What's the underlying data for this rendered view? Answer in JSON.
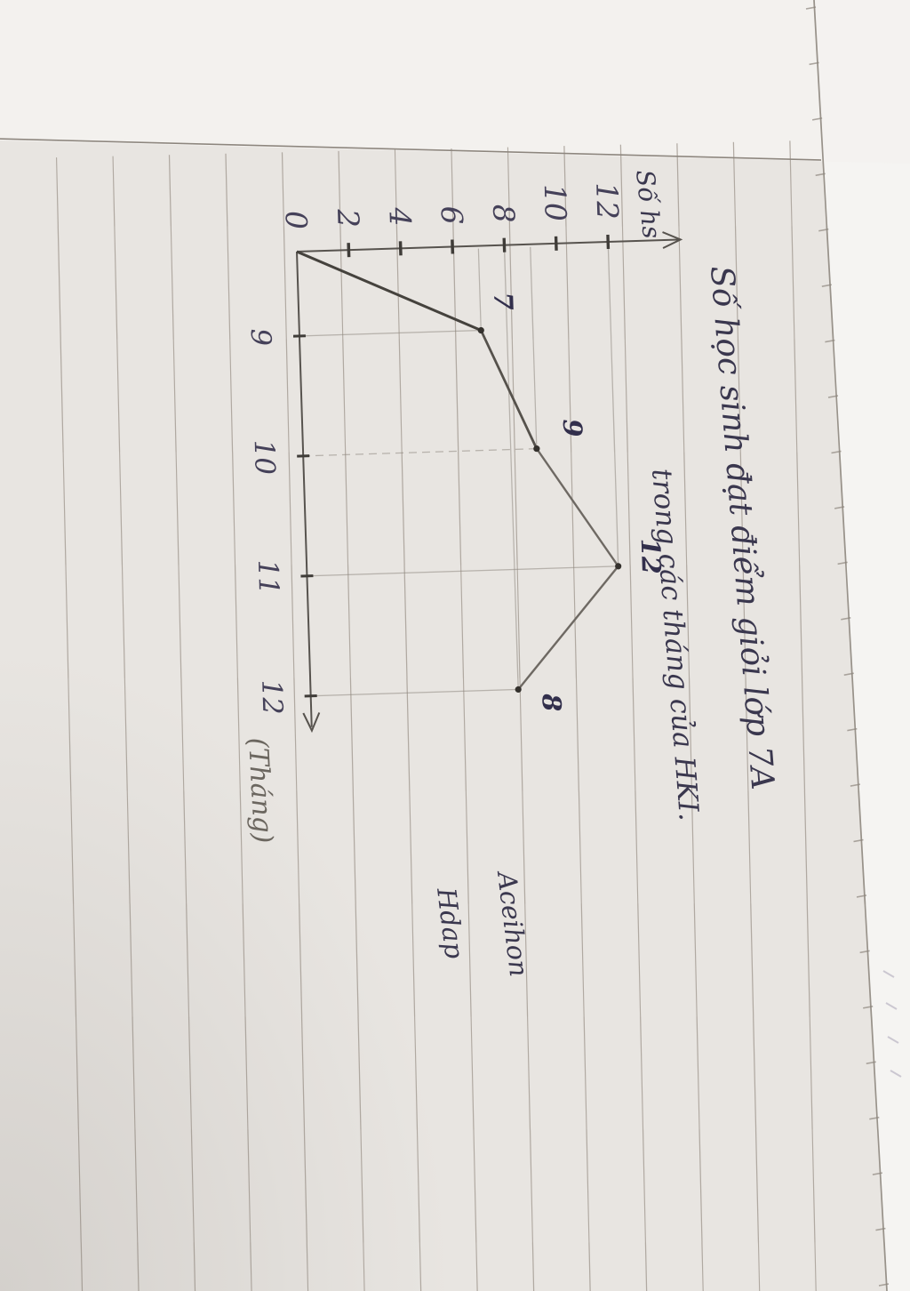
{
  "page": {
    "description": "Photograph of a hand-drawn line chart on lined notebook paper, page rotated 90 degrees in the photo",
    "colors": {
      "paper": "#e8e5e1",
      "paper_margin_strip": "#f4f2ef",
      "paper_behind_edge": "#f5f4f2",
      "rule_line": "#a79f97",
      "margin_line": "#8d867e",
      "page_edge_line": "#98928a",
      "ink": "#3a374e",
      "pencil": "#6b665f",
      "chart_stroke": "#57534e",
      "data_line": "#6e6963",
      "data_line_dark": "#45423d",
      "helper_line": "#908a81",
      "data_point": "#34312d"
    }
  },
  "title": {
    "line1": "Số học sinh đạt điểm giỏi lớp 7A",
    "line2": "trong các tháng của HKI."
  },
  "axes": {
    "y_label": "Số hs",
    "x_label": "(Tháng)"
  },
  "signature": {
    "line1": "Aceihon",
    "line2": "Hdap"
  },
  "chart_data": {
    "type": "line",
    "title": "Số học sinh đạt điểm giỏi lớp 7A trong các tháng của HKI.",
    "xlabel": "(Tháng)",
    "ylabel": "Số hs",
    "categories": [
      9,
      10,
      11,
      12
    ],
    "values": [
      7,
      9,
      12,
      8
    ],
    "point_labels": [
      "7",
      "9",
      "12",
      "8"
    ],
    "y_ticks": [
      0,
      2,
      4,
      6,
      8,
      10,
      12
    ],
    "x_tick_labels": [
      "9",
      "10",
      "11",
      "12"
    ],
    "ylim": [
      0,
      14
    ],
    "line_starts_at_origin": true,
    "grid": false,
    "legend_position": "none",
    "annotations": "thin pencil helper lines connect every data point to both axes; axes end in open hand-drawn arrowheads"
  }
}
